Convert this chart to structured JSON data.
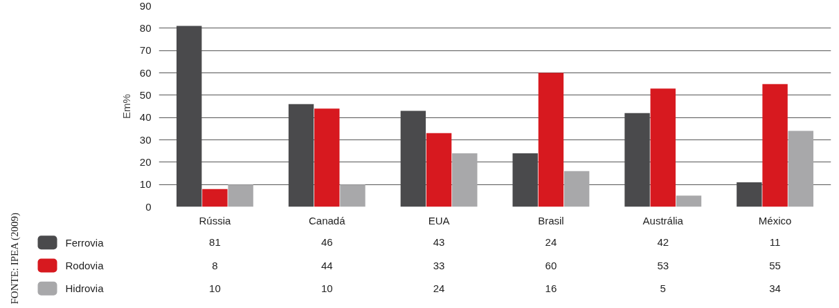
{
  "chart_data": {
    "type": "bar",
    "ylabel": "Em%",
    "categories": [
      "Rússia",
      "Canadá",
      "EUA",
      "Brasil",
      "Austrália",
      "México"
    ],
    "series": [
      {
        "name": "Ferrovia",
        "color": "#4a4a4c",
        "values": [
          81,
          46,
          43,
          24,
          42,
          11
        ]
      },
      {
        "name": "Rodovia",
        "color": "#d7191f",
        "values": [
          8,
          44,
          33,
          60,
          53,
          55
        ]
      },
      {
        "name": "Hidrovia",
        "color": "#a8a8aa",
        "values": [
          10,
          10,
          24,
          16,
          5,
          34
        ]
      }
    ],
    "ylim": [
      0,
      90
    ],
    "yticks": [
      0,
      10,
      20,
      30,
      40,
      50,
      60,
      70,
      80,
      90
    ],
    "grid": "y",
    "legend": "bottom left",
    "data_labels": true,
    "annotations": [
      "FONTE: IPEA (2009)"
    ]
  }
}
